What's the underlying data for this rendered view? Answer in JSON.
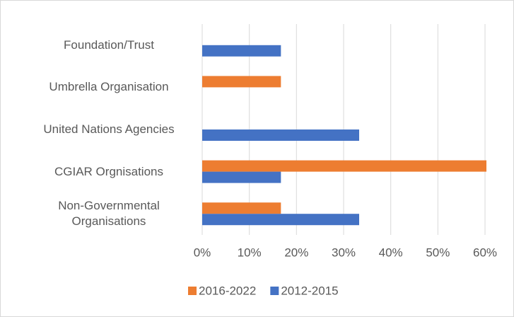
{
  "chart_data": {
    "type": "hbar",
    "categories": [
      "Foundation/Trust",
      "Umbrella Organisation",
      "United Nations Agencies",
      "CGIAR Orgnisations",
      "Non-Governmental Organisations"
    ],
    "series": [
      {
        "name": "2016-2022",
        "color": "#ed7d31",
        "values": [
          0,
          16.7,
          0,
          60.3,
          16.7
        ]
      },
      {
        "name": "2012-2015",
        "color": "#4472c4",
        "values": [
          16.7,
          0,
          33.3,
          16.7,
          33.3
        ]
      }
    ],
    "xlim": [
      0,
      60
    ],
    "xticks": [
      {
        "value": 0,
        "label": "0%"
      },
      {
        "value": 10,
        "label": "10%"
      },
      {
        "value": 20,
        "label": "20%"
      },
      {
        "value": 30,
        "label": "30%"
      },
      {
        "value": 40,
        "label": "40%"
      },
      {
        "value": 50,
        "label": "50%"
      },
      {
        "value": 60,
        "label": "60%"
      }
    ],
    "grid": true
  }
}
